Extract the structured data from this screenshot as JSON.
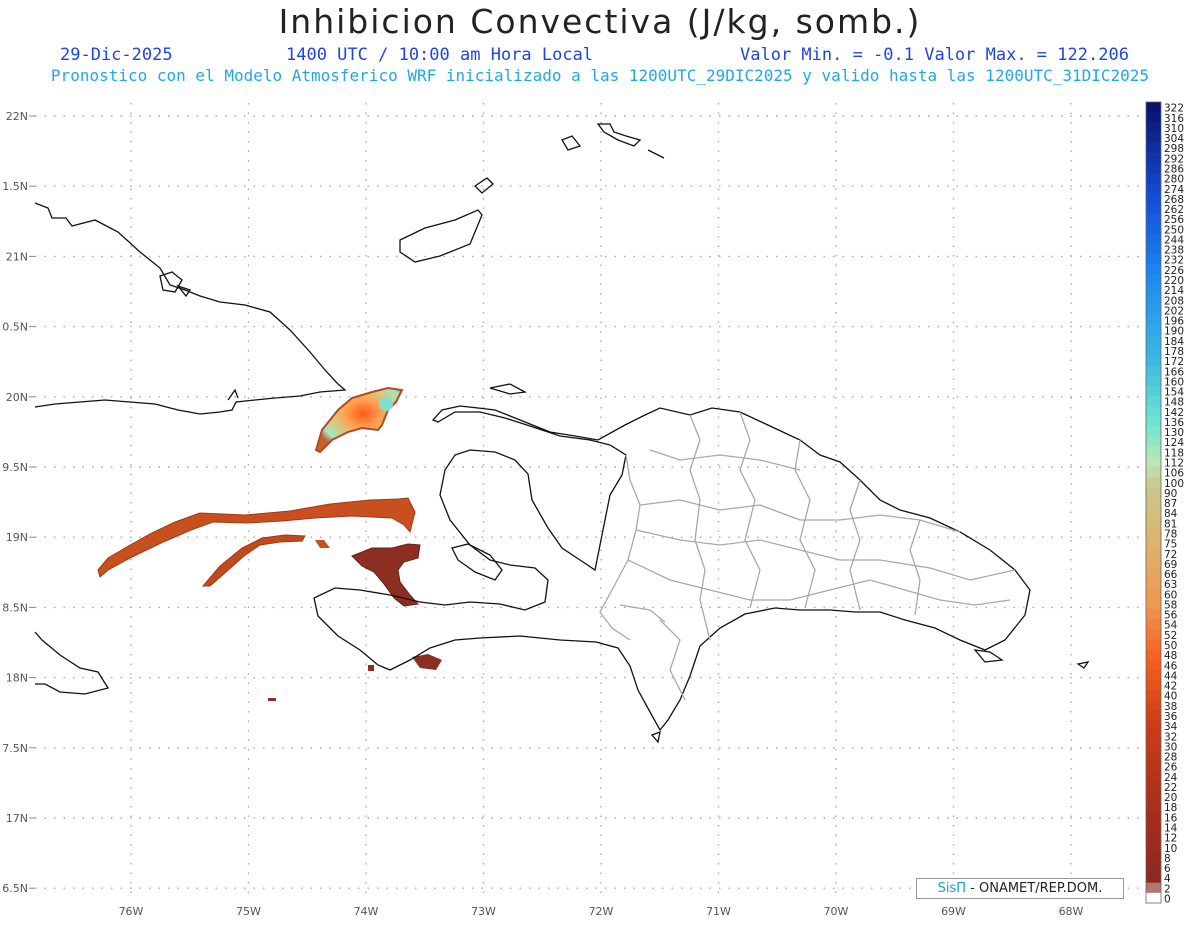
{
  "header": {
    "title": "Inhibicion Convectiva (J/kg, somb.)",
    "date": "29-Dic-2025",
    "time": "1400 UTC / 10:00 am Hora Local",
    "min_max": "Valor Min. = -0.1  Valor Max. = 122.206",
    "subtitle": "Pronostico con el Modelo Atmosferico WRF inicializado a las 1200UTC_29DIC2025 y valido hasta las  1200UTC_31DIC2025"
  },
  "axes": {
    "lat_labels": [
      "22N",
      "1.5N",
      "21N",
      "0.5N",
      "20N",
      "9.5N",
      "19N",
      "8.5N",
      "18N",
      "7.5N",
      "17N",
      "6.5N"
    ],
    "lon_labels": [
      "76W",
      "75W",
      "74W",
      "73W",
      "72W",
      "71W",
      "70W",
      "69W",
      "68W"
    ]
  },
  "colorbar": {
    "labels": [
      "322",
      "316",
      "310",
      "304",
      "298",
      "292",
      "286",
      "280",
      "274",
      "268",
      "262",
      "256",
      "250",
      "244",
      "238",
      "232",
      "226",
      "220",
      "214",
      "208",
      "202",
      "196",
      "190",
      "184",
      "178",
      "172",
      "166",
      "160",
      "154",
      "148",
      "142",
      "136",
      "130",
      "124",
      "118",
      "112",
      "106",
      "100",
      "90",
      "87",
      "84",
      "81",
      "78",
      "75",
      "72",
      "69",
      "66",
      "63",
      "60",
      "58",
      "56",
      "54",
      "52",
      "50",
      "48",
      "46",
      "44",
      "42",
      "40",
      "38",
      "36",
      "34",
      "32",
      "30",
      "28",
      "26",
      "24",
      "22",
      "20",
      "18",
      "16",
      "14",
      "12",
      "10",
      "8",
      "6",
      "4",
      "2",
      "0"
    ]
  },
  "credit": {
    "brand": "SisΠ",
    "text": " - ONAMET/REP.DOM."
  }
}
